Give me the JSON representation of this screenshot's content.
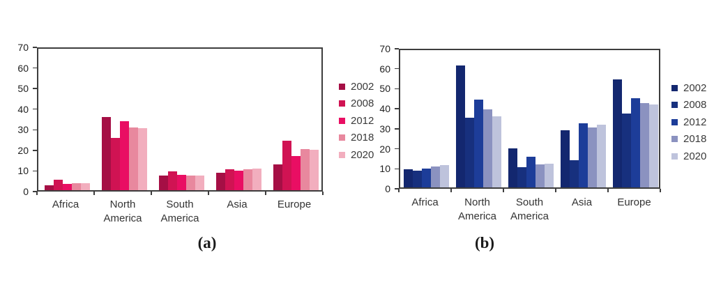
{
  "chart_data": [
    {
      "id": "a",
      "type": "bar",
      "caption": "(a)",
      "title": "",
      "xlabel": "",
      "ylabel": "",
      "ylim": [
        0,
        70
      ],
      "ytick_step": 10,
      "grid": false,
      "legend_position": "right",
      "categories": [
        "Africa",
        "North\nAmerica",
        "South\nAmerica",
        "Asia",
        "Europe"
      ],
      "series": [
        {
          "name": "2002",
          "color": "#a50f45",
          "values": [
            2.5,
            35.5,
            7,
            8.5,
            12.5
          ]
        },
        {
          "name": "2008",
          "color": "#d01353",
          "values": [
            5,
            25.5,
            9,
            10,
            24
          ]
        },
        {
          "name": "2012",
          "color": "#e90e63",
          "values": [
            3,
            33.5,
            7.5,
            9.5,
            16.5
          ]
        },
        {
          "name": "2018",
          "color": "#e8889e",
          "values": [
            3.5,
            30.5,
            7,
            10,
            20
          ]
        },
        {
          "name": "2020",
          "color": "#f2aebe",
          "values": [
            3.5,
            30,
            7,
            10.5,
            19.5
          ]
        }
      ]
    },
    {
      "id": "b",
      "type": "bar",
      "caption": "(b)",
      "title": "",
      "xlabel": "",
      "ylabel": "",
      "ylim": [
        0,
        70
      ],
      "ytick_step": 10,
      "grid": false,
      "legend_position": "right",
      "categories": [
        "Africa",
        "North\nAmerica",
        "South\nAmerica",
        "Asia",
        "Europe"
      ],
      "series": [
        {
          "name": "2002",
          "color": "#13276f",
          "values": [
            9,
            61,
            19.5,
            28.5,
            54
          ]
        },
        {
          "name": "2008",
          "color": "#17307e",
          "values": [
            8.3,
            35,
            10,
            13.5,
            37
          ]
        },
        {
          "name": "2012",
          "color": "#1d3d99",
          "values": [
            9.5,
            44,
            15.5,
            32,
            44.5
          ]
        },
        {
          "name": "2018",
          "color": "#8b92c0",
          "values": [
            10.5,
            39,
            11.5,
            30,
            42
          ]
        },
        {
          "name": "2020",
          "color": "#bec3dc",
          "values": [
            11,
            35.5,
            12,
            31.5,
            41.5
          ]
        }
      ]
    }
  ]
}
